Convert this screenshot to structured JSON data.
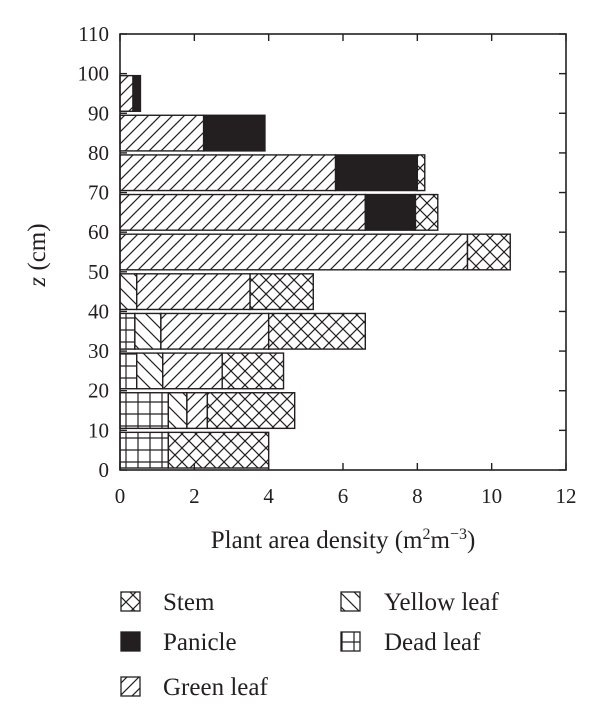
{
  "colors": {
    "ink": "#231f20",
    "background": "#ffffff"
  },
  "chart_data": {
    "type": "bar",
    "orientation": "horizontal",
    "stacked": true,
    "title": "",
    "xlabel_parts": {
      "base": "Plant area density (m",
      "sup1": "2",
      "mid": "m",
      "sup2": "−3",
      "end": ")"
    },
    "ylabel_parts": {
      "italic": "z",
      "rest": " (cm)"
    },
    "xlim": [
      0,
      12
    ],
    "ylim": [
      0,
      110
    ],
    "x_ticks": [
      "0",
      "2",
      "4",
      "6",
      "8",
      "10",
      "12"
    ],
    "y_ticks": [
      "0",
      "10",
      "20",
      "30",
      "40",
      "50",
      "60",
      "70",
      "80",
      "90",
      "100",
      "110"
    ],
    "grid": false,
    "legend_placement": "bottom",
    "series": [
      {
        "name": "Dead leaf",
        "pattern": "dead-leaf-hatch"
      },
      {
        "name": "Yellow leaf",
        "pattern": "yellow-leaf-hatch"
      },
      {
        "name": "Green leaf",
        "pattern": "green-leaf-hatch"
      },
      {
        "name": "Panicle",
        "pattern": "panicle-fill"
      },
      {
        "name": "Stem",
        "pattern": "stem-hatch"
      }
    ],
    "legend_order": [
      "Stem",
      "Panicle",
      "Green leaf",
      "Yellow leaf",
      "Dead leaf"
    ],
    "bars": [
      {
        "z_range": [
          0,
          10
        ],
        "segments": {
          "Dead leaf": 1.3,
          "Yellow leaf": 0,
          "Green leaf": 0,
          "Panicle": 0,
          "Stem": 2.7
        }
      },
      {
        "z_range": [
          10,
          20
        ],
        "segments": {
          "Dead leaf": 1.3,
          "Yellow leaf": 0.5,
          "Green leaf": 0.55,
          "Panicle": 0,
          "Stem": 2.35
        }
      },
      {
        "z_range": [
          20,
          30
        ],
        "segments": {
          "Dead leaf": 0.45,
          "Yellow leaf": 0.7,
          "Green leaf": 1.6,
          "Panicle": 0,
          "Stem": 1.65
        }
      },
      {
        "z_range": [
          30,
          40
        ],
        "segments": {
          "Dead leaf": 0.4,
          "Yellow leaf": 0.7,
          "Green leaf": 2.9,
          "Panicle": 0,
          "Stem": 2.6
        }
      },
      {
        "z_range": [
          40,
          50
        ],
        "segments": {
          "Dead leaf": 0,
          "Yellow leaf": 0.45,
          "Green leaf": 3.05,
          "Panicle": 0,
          "Stem": 1.7
        }
      },
      {
        "z_range": [
          50,
          60
        ],
        "segments": {
          "Dead leaf": 0,
          "Yellow leaf": 0,
          "Green leaf": 9.35,
          "Panicle": 0,
          "Stem": 1.15
        }
      },
      {
        "z_range": [
          60,
          70
        ],
        "segments": {
          "Dead leaf": 0,
          "Yellow leaf": 0,
          "Green leaf": 6.6,
          "Panicle": 1.35,
          "Stem": 0.6
        }
      },
      {
        "z_range": [
          70,
          80
        ],
        "segments": {
          "Dead leaf": 0,
          "Yellow leaf": 0,
          "Green leaf": 5.8,
          "Panicle": 2.2,
          "Stem": 0.2
        }
      },
      {
        "z_range": [
          80,
          90
        ],
        "segments": {
          "Dead leaf": 0,
          "Yellow leaf": 0,
          "Green leaf": 2.25,
          "Panicle": 1.65,
          "Stem": 0
        }
      },
      {
        "z_range": [
          90,
          100
        ],
        "segments": {
          "Dead leaf": 0,
          "Yellow leaf": 0,
          "Green leaf": 0.35,
          "Panicle": 0.2,
          "Stem": 0
        }
      }
    ]
  }
}
